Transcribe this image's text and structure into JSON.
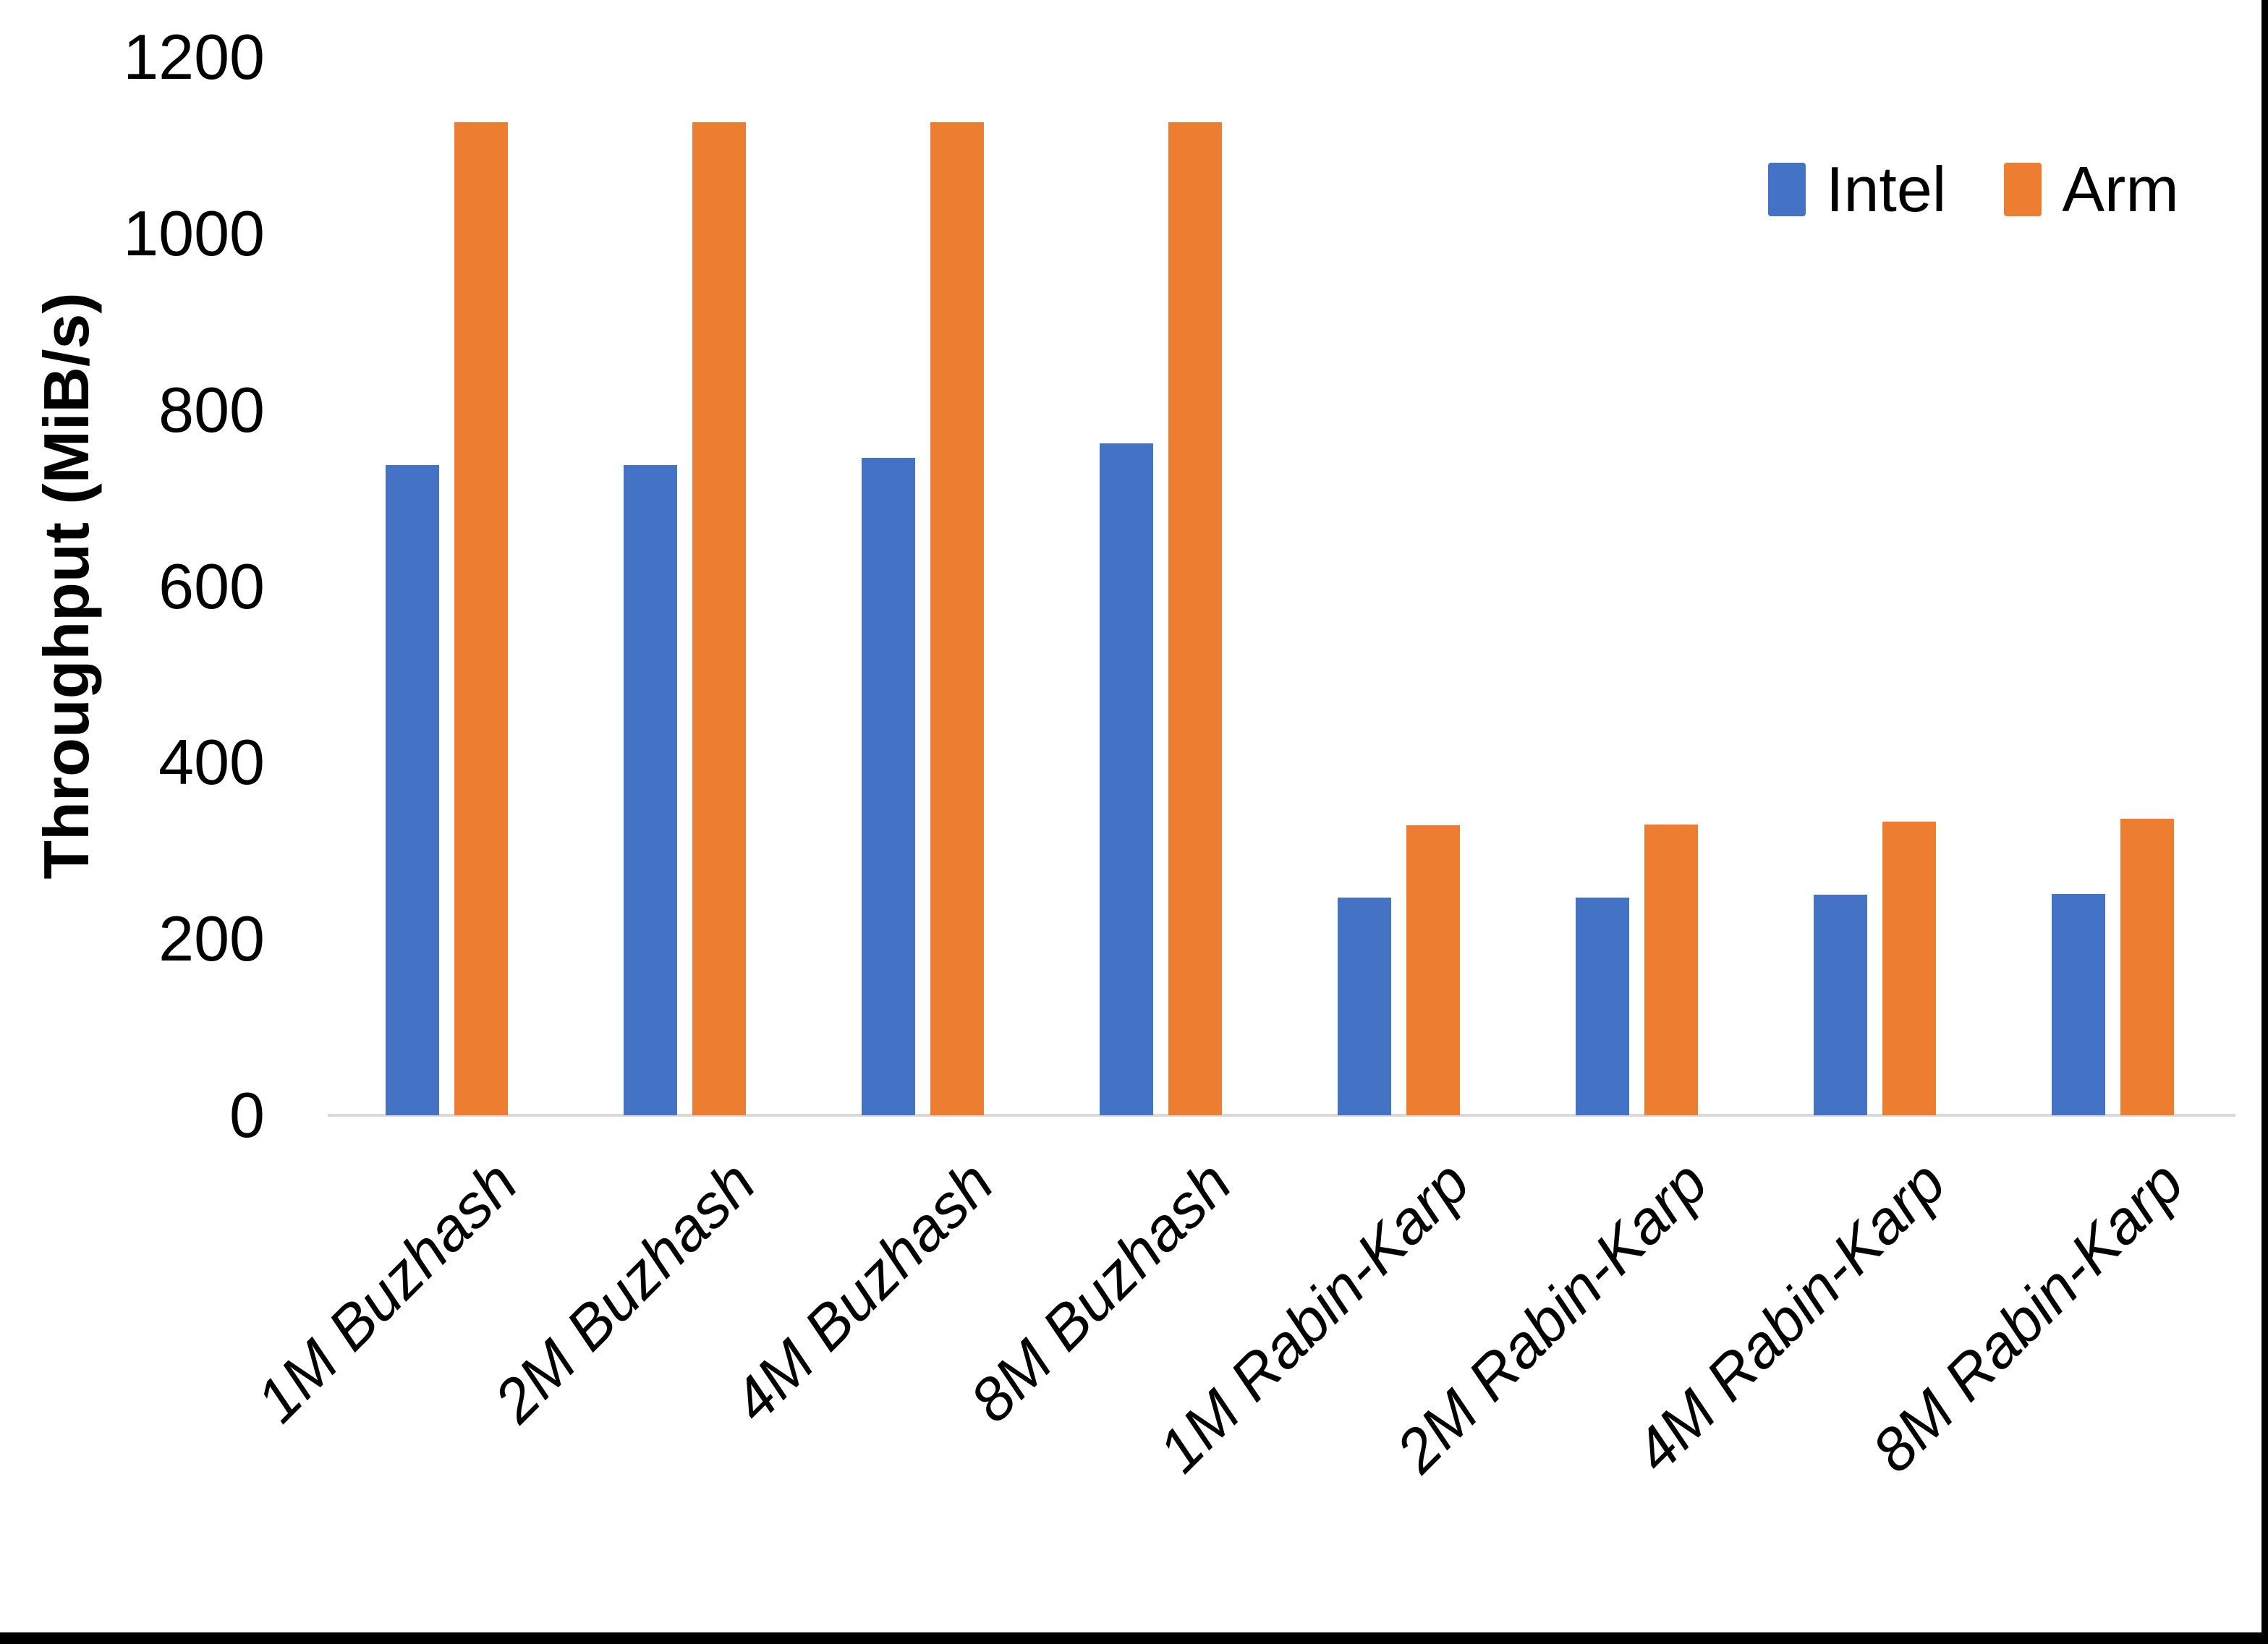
{
  "chart_data": {
    "type": "bar",
    "title": "",
    "categories": [
      "1M Buzhash",
      "2M Buzhash",
      "4M Buzhash",
      "8M Buzhash",
      "1M Rabin-Karp",
      "2M Rabin-Karp",
      "4M Rabin-Karp",
      "8M Rabin-Karp"
    ],
    "series": [
      {
        "name": "Intel",
        "color": "#4472C4",
        "values": [
          737,
          737,
          746,
          762,
          247,
          247,
          250,
          251
        ]
      },
      {
        "name": "Arm",
        "color": "#ED7D31",
        "values": [
          1126,
          1126,
          1126,
          1126,
          329,
          330,
          333,
          336
        ]
      }
    ],
    "xlabel": "",
    "ylabel": "Throughput (MiB/s)",
    "ylim": [
      0,
      1200
    ],
    "ytick_step": 200,
    "yticks": [
      1200,
      1000,
      800,
      600,
      400,
      200,
      0
    ],
    "ytick_labels": [
      "1200",
      "1000",
      "800",
      "600",
      "400",
      "200",
      "0"
    ],
    "grid": false,
    "legend_position": "top-right",
    "bar_orientation": "vertical"
  },
  "colors": {
    "background": "#FFFFFF",
    "axis_line": "#D9D9D9",
    "text": "#000000",
    "frame": "#000000",
    "intel": "#4472C4",
    "arm": "#ED7D31"
  }
}
